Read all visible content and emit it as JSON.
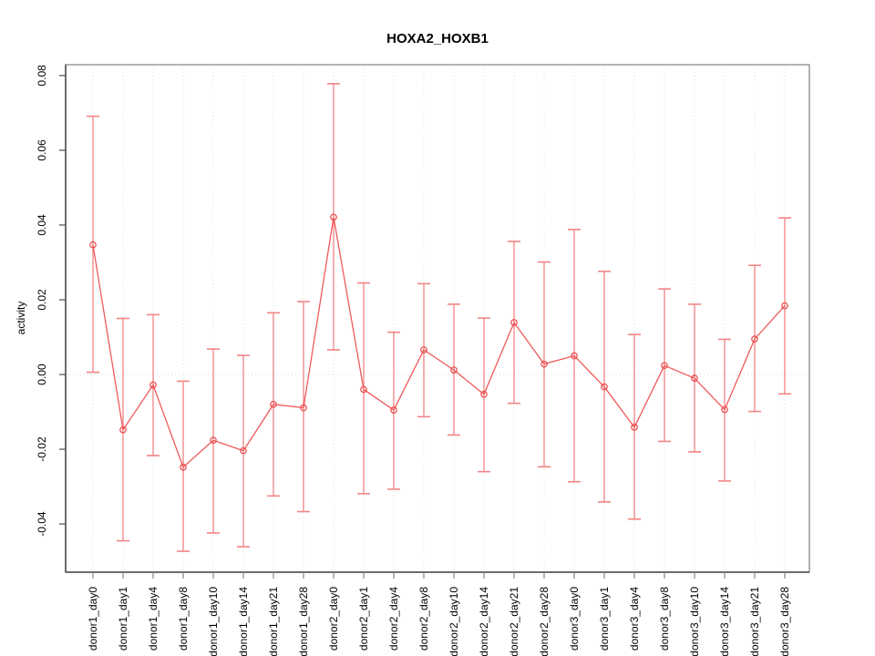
{
  "figure": {
    "background": "#ffffff"
  },
  "chart_data": {
    "type": "line",
    "title": "HOXA2_HOXB1",
    "xlabel": "",
    "ylabel": "activity",
    "legend": "none",
    "grid": "vertical dotted gridline per category; dotted horizontal reference line at y=0",
    "marker": "open-circle",
    "error_bars": true,
    "categories": [
      "donor1_day0",
      "donor1_day1",
      "donor1_day4",
      "donor1_day8",
      "donor1_day10",
      "donor1_day14",
      "donor1_day21",
      "donor1_day28",
      "donor2_day0",
      "donor2_day1",
      "donor2_day4",
      "donor2_day8",
      "donor2_day10",
      "donor2_day14",
      "donor2_day21",
      "donor2_day28",
      "donor3_day0",
      "donor3_day1",
      "donor3_day4",
      "donor3_day8",
      "donor3_day10",
      "donor3_day14",
      "donor3_day21",
      "donor3_day28"
    ],
    "series": [
      {
        "name": "activity",
        "values": [
          0.0347,
          -0.0148,
          -0.0028,
          -0.0248,
          -0.0176,
          -0.0204,
          -0.008,
          -0.0089,
          0.0421,
          -0.004,
          -0.0095,
          0.0066,
          0.0012,
          -0.0053,
          0.0139,
          0.0028,
          0.005,
          -0.0033,
          -0.0141,
          0.0024,
          -0.001,
          -0.0094,
          0.0095,
          0.0184
        ],
        "error_high": [
          0.0691,
          0.015,
          0.016,
          -0.0018,
          0.0068,
          0.0051,
          0.0165,
          0.0195,
          0.0778,
          0.0245,
          0.0113,
          0.0243,
          0.0188,
          0.0151,
          0.0356,
          0.0301,
          0.0388,
          0.0276,
          0.0107,
          0.0229,
          0.0188,
          0.0094,
          0.0292,
          0.0419
        ],
        "error_low": [
          0.0006,
          -0.0445,
          -0.0217,
          -0.0473,
          -0.0424,
          -0.0461,
          -0.0325,
          -0.0367,
          0.0066,
          -0.0319,
          -0.0307,
          -0.0113,
          -0.0162,
          -0.026,
          -0.0077,
          -0.0247,
          -0.0287,
          -0.0341,
          -0.0387,
          -0.0179,
          -0.0207,
          -0.0285,
          -0.0099,
          -0.0052
        ]
      }
    ],
    "ylim": [
      -0.0529,
      0.0829
    ],
    "yticks": [
      {
        "v": 0.08,
        "label": "0.08"
      },
      {
        "v": 0.06,
        "label": "0.06"
      },
      {
        "v": 0.04,
        "label": "0.04"
      },
      {
        "v": 0.02,
        "label": "0.02"
      },
      {
        "v": 0.0,
        "label": "0.00"
      },
      {
        "v": -0.02,
        "label": "-0.02"
      },
      {
        "v": -0.04,
        "label": "-0.04"
      }
    ],
    "colors": {
      "series_line": "#EE5A5A",
      "marker_stroke": "#EA5252",
      "error_bar": "#F28484",
      "gridline": "#E3E3E3",
      "zero_line": "#D8D8D8",
      "axis_dark": "#4D4D4D",
      "box_gray": "#9A9A9A",
      "tick_gray": "#858585",
      "text": "#000000"
    }
  }
}
